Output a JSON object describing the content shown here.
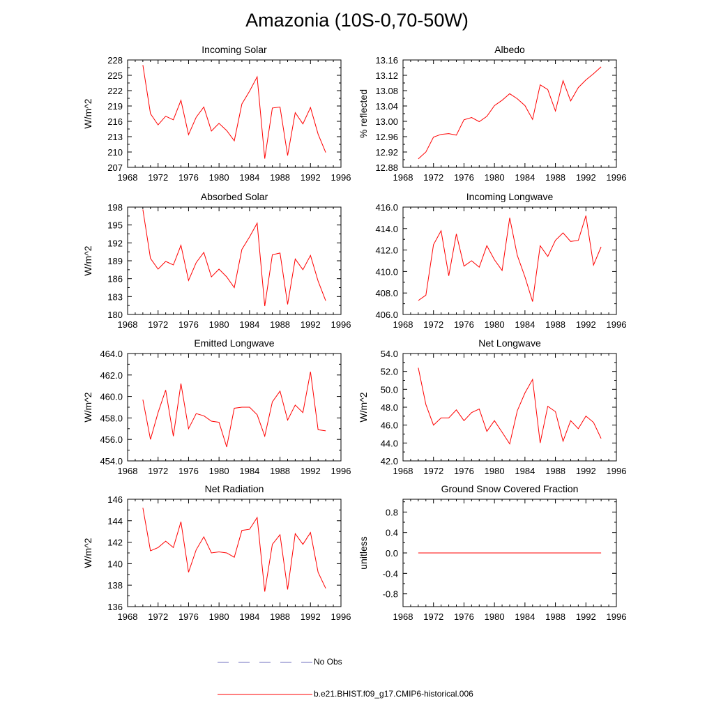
{
  "page": {
    "title": "Amazonia (10S-0,70-50W)"
  },
  "colors": {
    "model_line": "#ff0000",
    "obs_line": "#6f6fbf",
    "axis": "#000000"
  },
  "legend": {
    "obs_label": "No Obs",
    "model_label": "b.e21.BHIST.f09_g17.CMIP6-historical.006"
  },
  "chart_data": [
    {
      "type": "line",
      "title": "Incoming Solar",
      "ylabel": "W/m^2",
      "xlim": [
        1968,
        1996
      ],
      "ylim": [
        207,
        228
      ],
      "x_ticks": [
        1968,
        1972,
        1976,
        1980,
        1984,
        1988,
        1992,
        1996
      ],
      "y_ticks": [
        "207",
        "210",
        "213",
        "216",
        "219",
        "222",
        "225",
        "228"
      ],
      "x": [
        1970,
        1971,
        1972,
        1973,
        1974,
        1975,
        1976,
        1977,
        1978,
        1979,
        1980,
        1981,
        1982,
        1983,
        1984,
        1985,
        1986,
        1987,
        1988,
        1989,
        1990,
        1991,
        1992,
        1993,
        1994
      ],
      "values": [
        227.0,
        217.5,
        215.3,
        217.0,
        216.3,
        220.1,
        213.4,
        216.8,
        218.8,
        214.1,
        215.6,
        214.2,
        212.2,
        219.4,
        221.9,
        224.7,
        208.7,
        218.6,
        218.8,
        209.3,
        217.7,
        215.5,
        218.7,
        213.5,
        209.9
      ]
    },
    {
      "type": "line",
      "title": "Albedo",
      "ylabel": "% reflected",
      "xlim": [
        1968,
        1996
      ],
      "ylim": [
        12.88,
        13.16
      ],
      "x_ticks": [
        1968,
        1972,
        1976,
        1980,
        1984,
        1988,
        1992,
        1996
      ],
      "y_ticks": [
        "12.88",
        "12.92",
        "12.96",
        "13.00",
        "13.04",
        "13.08",
        "13.12",
        "13.16"
      ],
      "x": [
        1970,
        1971,
        1972,
        1973,
        1974,
        1975,
        1976,
        1977,
        1978,
        1979,
        1980,
        1981,
        1982,
        1983,
        1984,
        1985,
        1986,
        1987,
        1988,
        1989,
        1990,
        1991,
        1992,
        1993,
        1994
      ],
      "values": [
        12.902,
        12.92,
        12.959,
        12.966,
        12.968,
        12.964,
        13.004,
        13.01,
        12.999,
        13.013,
        13.041,
        13.055,
        13.072,
        13.059,
        13.041,
        13.005,
        13.095,
        13.083,
        13.027,
        13.106,
        13.053,
        13.088,
        13.108,
        13.124,
        13.142
      ]
    },
    {
      "type": "line",
      "title": "Absorbed Solar",
      "ylabel": "W/m^2",
      "xlim": [
        1968,
        1996
      ],
      "ylim": [
        180,
        198
      ],
      "x_ticks": [
        1968,
        1972,
        1976,
        1980,
        1984,
        1988,
        1992,
        1996
      ],
      "y_ticks": [
        "180",
        "183",
        "186",
        "189",
        "192",
        "195",
        "198"
      ],
      "x": [
        1970,
        1971,
        1972,
        1973,
        1974,
        1975,
        1976,
        1977,
        1978,
        1979,
        1980,
        1981,
        1982,
        1983,
        1984,
        1985,
        1986,
        1987,
        1988,
        1989,
        1990,
        1991,
        1992,
        1993,
        1994
      ],
      "values": [
        197.6,
        189.4,
        187.6,
        188.9,
        188.3,
        191.6,
        185.7,
        188.7,
        190.4,
        186.3,
        187.6,
        186.3,
        184.5,
        190.9,
        193.0,
        195.3,
        181.4,
        190.0,
        190.3,
        181.7,
        189.3,
        187.5,
        189.9,
        185.6,
        182.3
      ]
    },
    {
      "type": "line",
      "title": "Incoming Longwave",
      "ylabel": "",
      "xlim": [
        1968,
        1996
      ],
      "ylim": [
        406,
        416
      ],
      "x_ticks": [
        1968,
        1972,
        1976,
        1980,
        1984,
        1988,
        1992,
        1996
      ],
      "y_ticks": [
        "406.0",
        "408.0",
        "410.0",
        "412.0",
        "414.0",
        "416.0"
      ],
      "x": [
        1970,
        1971,
        1972,
        1973,
        1974,
        1975,
        1976,
        1977,
        1978,
        1979,
        1980,
        1981,
        1982,
        1983,
        1984,
        1985,
        1986,
        1987,
        1988,
        1989,
        1990,
        1991,
        1992,
        1993,
        1994
      ],
      "values": [
        407.3,
        407.8,
        412.5,
        413.8,
        409.6,
        413.5,
        410.5,
        411.0,
        410.4,
        412.4,
        411.1,
        410.1,
        415.0,
        411.5,
        409.5,
        407.2,
        412.4,
        411.4,
        412.9,
        413.6,
        412.8,
        412.9,
        415.2,
        410.6,
        412.3
      ]
    },
    {
      "type": "line",
      "title": "Emitted Longwave",
      "ylabel": "W/m^2",
      "xlim": [
        1968,
        1996
      ],
      "ylim": [
        454,
        464
      ],
      "x_ticks": [
        1968,
        1972,
        1976,
        1980,
        1984,
        1988,
        1992,
        1996
      ],
      "y_ticks": [
        "454.0",
        "456.0",
        "458.0",
        "460.0",
        "462.0",
        "464.0"
      ],
      "x": [
        1970,
        1971,
        1972,
        1973,
        1974,
        1975,
        1976,
        1977,
        1978,
        1979,
        1980,
        1981,
        1982,
        1983,
        1984,
        1985,
        1986,
        1987,
        1988,
        1989,
        1990,
        1991,
        1992,
        1993,
        1994
      ],
      "values": [
        459.7,
        456.0,
        458.5,
        460.6,
        456.3,
        461.2,
        457.0,
        458.4,
        458.2,
        457.7,
        457.6,
        455.3,
        458.9,
        459.0,
        459.0,
        458.3,
        456.3,
        459.5,
        460.5,
        457.8,
        459.2,
        458.5,
        462.3,
        456.9,
        456.8
      ]
    },
    {
      "type": "line",
      "title": "Net Longwave",
      "ylabel": "W/m^2",
      "xlim": [
        1968,
        1996
      ],
      "ylim": [
        42,
        54
      ],
      "x_ticks": [
        1968,
        1972,
        1976,
        1980,
        1984,
        1988,
        1992,
        1996
      ],
      "y_ticks": [
        "42.0",
        "44.0",
        "46.0",
        "48.0",
        "50.0",
        "52.0",
        "54.0"
      ],
      "x": [
        1970,
        1971,
        1972,
        1973,
        1974,
        1975,
        1976,
        1977,
        1978,
        1979,
        1980,
        1981,
        1982,
        1983,
        1984,
        1985,
        1986,
        1987,
        1988,
        1989,
        1990,
        1991,
        1992,
        1993,
        1994
      ],
      "values": [
        52.4,
        48.3,
        46.0,
        46.8,
        46.8,
        47.7,
        46.5,
        47.4,
        47.8,
        45.3,
        46.5,
        45.2,
        43.9,
        47.6,
        49.6,
        51.1,
        44.0,
        48.1,
        47.5,
        44.2,
        46.5,
        45.6,
        47.0,
        46.3,
        44.5
      ]
    },
    {
      "type": "line",
      "title": "Net Radiation",
      "ylabel": "W/m^2",
      "xlim": [
        1968,
        1996
      ],
      "ylim": [
        136,
        146
      ],
      "x_ticks": [
        1968,
        1972,
        1976,
        1980,
        1984,
        1988,
        1992,
        1996
      ],
      "y_ticks": [
        "136",
        "138",
        "140",
        "142",
        "144",
        "146"
      ],
      "x": [
        1970,
        1971,
        1972,
        1973,
        1974,
        1975,
        1976,
        1977,
        1978,
        1979,
        1980,
        1981,
        1982,
        1983,
        1984,
        1985,
        1986,
        1987,
        1988,
        1989,
        1990,
        1991,
        1992,
        1993,
        1994
      ],
      "values": [
        145.2,
        141.2,
        141.5,
        142.1,
        141.5,
        143.9,
        139.2,
        141.3,
        142.5,
        141.0,
        141.1,
        141.0,
        140.6,
        143.1,
        143.2,
        144.3,
        137.4,
        141.8,
        142.7,
        137.6,
        142.8,
        141.8,
        142.9,
        139.2,
        137.7
      ]
    },
    {
      "type": "line",
      "title": "Ground Snow Covered Fraction",
      "ylabel": "unitless",
      "xlim": [
        1968,
        1996
      ],
      "ylim": [
        -1.05,
        1.05
      ],
      "x_ticks": [
        1968,
        1972,
        1976,
        1980,
        1984,
        1988,
        1992,
        1996
      ],
      "y_ticks": [
        "-0.8",
        "-0.4",
        "0.0",
        "0.4",
        "0.8"
      ],
      "x": [
        1970,
        1971,
        1972,
        1973,
        1974,
        1975,
        1976,
        1977,
        1978,
        1979,
        1980,
        1981,
        1982,
        1983,
        1984,
        1985,
        1986,
        1987,
        1988,
        1989,
        1990,
        1991,
        1992,
        1993,
        1994
      ],
      "values": [
        0,
        0,
        0,
        0,
        0,
        0,
        0,
        0,
        0,
        0,
        0,
        0,
        0,
        0,
        0,
        0,
        0,
        0,
        0,
        0,
        0,
        0,
        0,
        0,
        0
      ]
    }
  ]
}
